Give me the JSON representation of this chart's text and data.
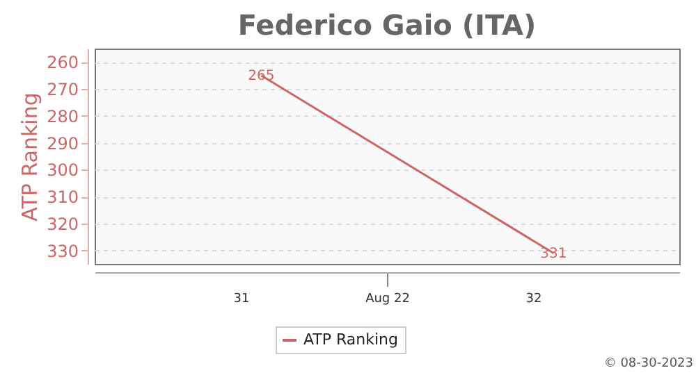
{
  "chart_data": {
    "type": "line",
    "title": "Federico Gaio (ITA)",
    "ylabel": "ATP Ranking",
    "x": [
      31.07,
      32.07
    ],
    "series": [
      {
        "name": "ATP Ranking",
        "color": "#cc6666",
        "values": [
          265,
          331
        ]
      }
    ],
    "xlim": [
      30.5,
      32.5
    ],
    "xticks": [
      31,
      {
        "value": 31.5,
        "label": "Aug 22"
      },
      32
    ],
    "ylim": [
      335,
      255
    ],
    "yticks": [
      260,
      270,
      280,
      290,
      300,
      310,
      320,
      330
    ],
    "grid": "y",
    "line_style": "solid",
    "marker": "none",
    "data_labels": true,
    "legend": "bottom",
    "annotations": [
      "© 08-30-2023"
    ]
  }
}
